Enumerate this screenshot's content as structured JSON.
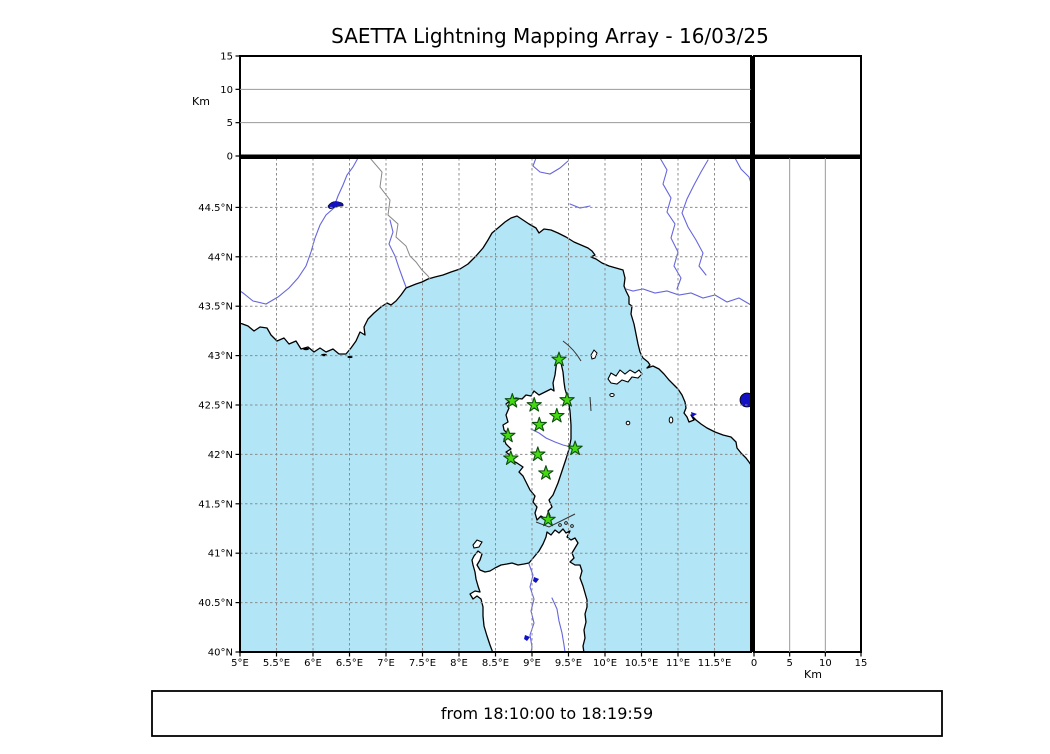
{
  "title": "SAETTA Lightning Mapping Array - 16/03/25",
  "footer": {
    "time_range": "from 18:10:00 to 18:19:59"
  },
  "altitude_axis": {
    "label": "Km",
    "tick_values": [
      0,
      5,
      10,
      15
    ],
    "tick_labels": [
      "0",
      "5",
      "10",
      "15"
    ],
    "gridline_values": [
      5,
      10
    ],
    "max_km": 15
  },
  "map": {
    "lon_axis": {
      "tick_values": [
        5,
        5.5,
        6,
        6.5,
        7,
        7.5,
        8,
        8.5,
        9,
        9.5,
        10,
        10.5,
        11,
        11.5
      ],
      "tick_labels": [
        "5°E",
        "5.5°E",
        "6°E",
        "6.5°E",
        "7°E",
        "7.5°E",
        "8°E",
        "8.5°E",
        "9°E",
        "9.5°E",
        "10°E",
        "10.5°E",
        "11°E",
        "11.5°E"
      ],
      "range": [
        5,
        12
      ]
    },
    "lat_axis": {
      "tick_values": [
        44.5,
        44,
        43.5,
        43,
        42.5,
        42,
        41.5,
        41,
        40.5,
        40
      ],
      "tick_labels": [
        "44.5°N",
        "44°N",
        "43.5°N",
        "43°N",
        "42.5°N",
        "42°N",
        "41.5°N",
        "41°N",
        "40.5°N",
        "40°N"
      ],
      "range": [
        40,
        45
      ]
    },
    "stations": [
      {
        "lon": 9.37,
        "lat": 42.96
      },
      {
        "lon": 8.73,
        "lat": 42.54
      },
      {
        "lon": 9.03,
        "lat": 42.5
      },
      {
        "lon": 9.48,
        "lat": 42.55
      },
      {
        "lon": 9.34,
        "lat": 42.39
      },
      {
        "lon": 9.1,
        "lat": 42.3
      },
      {
        "lon": 8.67,
        "lat": 42.19
      },
      {
        "lon": 9.59,
        "lat": 42.06
      },
      {
        "lon": 8.71,
        "lat": 41.96
      },
      {
        "lon": 9.08,
        "lat": 42.0
      },
      {
        "lon": 9.19,
        "lat": 41.81
      },
      {
        "lon": 9.22,
        "lat": 41.34
      }
    ],
    "colors": {
      "sea": "#b2e6f7",
      "land": "#ffffff",
      "coast": "#000000",
      "river": "#6666dd",
      "lake": "#1212c4",
      "grid": "#8c8c8c",
      "panel_grid": "#9a9a9a",
      "station_fill": "#44d911",
      "station_edge": "#0d4f0d",
      "country_border": "#888888"
    }
  }
}
